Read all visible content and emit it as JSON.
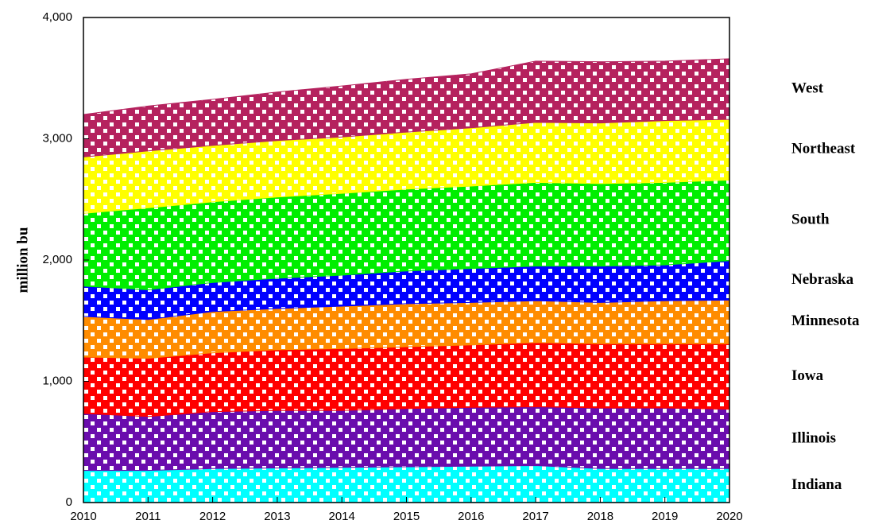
{
  "chart_data": {
    "type": "stacked-area",
    "y_label": "million bu",
    "x": [
      2010,
      2011,
      2012,
      2013,
      2014,
      2015,
      2016,
      2017,
      2018,
      2019,
      2020
    ],
    "xlim": [
      2010,
      2020
    ],
    "xticks": [
      2010,
      2011,
      2012,
      2013,
      2014,
      2015,
      2016,
      2017,
      2018,
      2019,
      2020
    ],
    "ylim": [
      0,
      4000
    ],
    "yticks": [
      0,
      {
        "value": 1000,
        "label": "1,000"
      },
      {
        "value": 2000,
        "label": "2,000"
      },
      {
        "value": 3000,
        "label": "3,000"
      },
      {
        "value": 4000,
        "label": "4,000"
      }
    ],
    "series": [
      {
        "name": "Indiana",
        "color": "#00ffff",
        "values": [
          265,
          265,
          280,
          285,
          290,
          295,
          300,
          305,
          280,
          280,
          280
        ]
      },
      {
        "name": "Illinois",
        "color": "#6a0dad",
        "values": [
          470,
          445,
          470,
          475,
          470,
          480,
          485,
          485,
          500,
          500,
          490
        ]
      },
      {
        "name": "Iowa",
        "color": "#ff0000",
        "values": [
          465,
          480,
          485,
          500,
          510,
          510,
          515,
          530,
          530,
          530,
          540
        ]
      },
      {
        "name": "Minnesota",
        "color": "#ff8c00",
        "values": [
          335,
          320,
          340,
          340,
          350,
          355,
          350,
          345,
          340,
          355,
          360
        ]
      },
      {
        "name": "Nebraska",
        "color": "#0000ff",
        "values": [
          250,
          245,
          240,
          250,
          255,
          270,
          280,
          285,
          300,
          295,
          325
        ]
      },
      {
        "name": "South",
        "color": "#00ee00",
        "values": [
          600,
          675,
          665,
          670,
          675,
          675,
          680,
          690,
          680,
          680,
          665
        ]
      },
      {
        "name": "Northeast",
        "color": "#ffff00",
        "values": [
          465,
          470,
          465,
          465,
          465,
          470,
          480,
          495,
          500,
          510,
          500
        ]
      },
      {
        "name": "West",
        "color": "#b5225e",
        "values": [
          350,
          370,
          380,
          400,
          420,
          435,
          445,
          505,
          505,
          490,
          500
        ]
      }
    ]
  }
}
